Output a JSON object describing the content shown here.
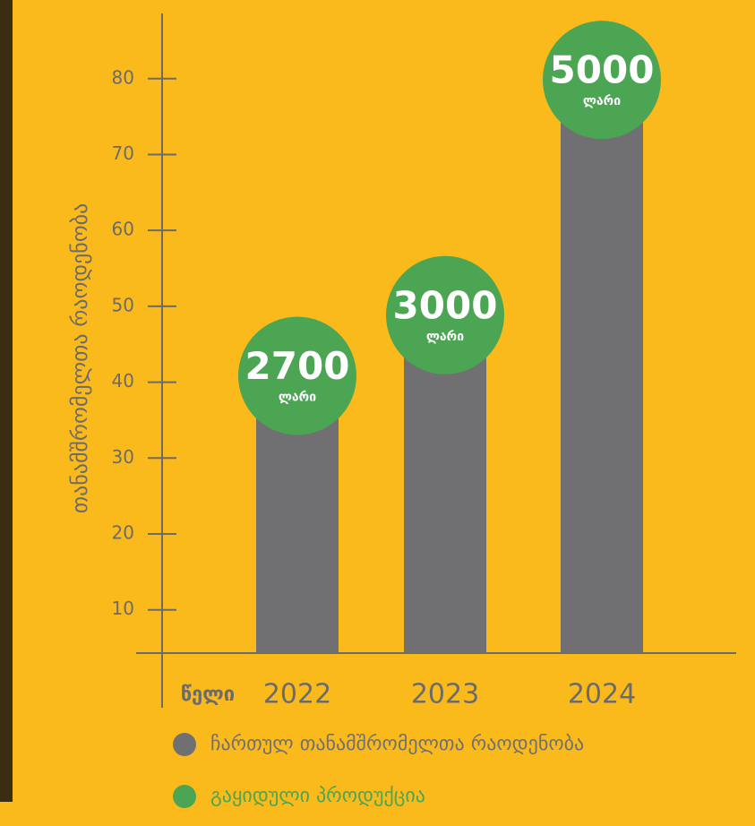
{
  "chart_data": {
    "type": "bar",
    "y_label": "თანამშრომელთა რაოდენობა",
    "x_label": "წელი",
    "categories": [
      "2022",
      "2023",
      "2024"
    ],
    "series": [
      {
        "name": "ჩართულ თანამშრომელთა რაოდენობა",
        "color": "#707073",
        "values": [
          38,
          46,
          77
        ]
      },
      {
        "name": "გაყიდული პროდუქცია",
        "color": "#4ba553",
        "values": [
          2700,
          3000,
          5000
        ]
      }
    ],
    "value_unit": "ლარი",
    "ylim": [
      4.3,
      88
    ],
    "yticks": [
      10,
      20,
      30,
      40,
      50,
      60,
      70,
      80
    ],
    "grid": false
  }
}
